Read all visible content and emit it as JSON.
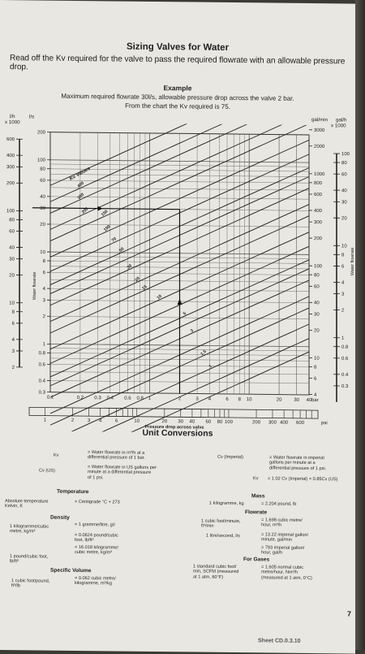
{
  "page": {
    "title": "Sizing Valves for Water",
    "intro": "Read off the Kv required for the valve to pass the required flowrate with an allowable pressure drop.",
    "example_heading": "Example",
    "example_line1": "Maximum required flowrate 30l/s, allowable pressure drop across the valve 2 bar.",
    "example_line2": "From the chart the Kv required is 75.",
    "page_number": "7",
    "footer_fragment": "Sheet CD.0.3.10"
  },
  "chart_data": {
    "type": "nomogram",
    "left_outer_label": [
      "l/h",
      "x 1000"
    ],
    "left_outer_ticks": [
      "600",
      "400",
      "300",
      "200",
      "100",
      "80",
      "60",
      "40",
      "30",
      "20",
      "10",
      "8",
      "6",
      "4",
      "3",
      "2"
    ],
    "left_inner_label": "l/s",
    "left_inner_ticks": [
      "200",
      "100",
      "80",
      "60",
      "40",
      "30",
      "20",
      "10",
      "8",
      "6",
      "4",
      "3",
      "2",
      "1",
      "0.8",
      "0.6",
      "0.4",
      "0.3"
    ],
    "left_axis_title": "Water flowrate",
    "right_inner_label": "gal/min",
    "right_inner_ticks": [
      "3000",
      "2000",
      "1000",
      "800",
      "600",
      "400",
      "300",
      "200",
      "100",
      "80",
      "60",
      "40",
      "30",
      "20",
      "10",
      "8",
      "6",
      "4"
    ],
    "right_outer_label": [
      "gal/h",
      "x 1000"
    ],
    "right_outer_ticks": [
      "100",
      "80",
      "60",
      "40",
      "30",
      "20",
      "10",
      "8",
      "6",
      "4",
      "3",
      "2",
      "1",
      "0.8",
      "0.6",
      "0.4",
      "0.3",
      "0.2"
    ],
    "right_axis_title": "Water flowrate",
    "x_bar_ticks": [
      "0.1",
      "0.2",
      "0.3",
      "0.4",
      "0.6",
      "0.8",
      "1",
      "2",
      "3",
      "4",
      "6",
      "8",
      "10",
      "20",
      "30",
      "40"
    ],
    "x_bar_unit": "bar",
    "x_psi_ticks": [
      "1",
      "2",
      "3",
      "4",
      "6",
      "10",
      "20",
      "30",
      "40",
      "60",
      "80",
      "100",
      "200",
      "300",
      "400",
      "600"
    ],
    "x_psi_unit": "psi",
    "x_axis_title": "Pressure drop across valve",
    "kv_title": "Kv Values",
    "kv_labels": [
      "400",
      "300",
      "200",
      "100",
      "150",
      "70",
      "50",
      "30",
      "20",
      "15",
      "10",
      "7",
      "5",
      "3",
      "1.5",
      "1"
    ],
    "example": {
      "flow_l_per_s": 30,
      "pressure_drop_bar": 2,
      "kv": 75
    }
  },
  "conversions": {
    "heading": "Unit Conversions",
    "kv_sym": "Kv",
    "kv_def": [
      "= Water flowrate in m³/h at a",
      "differential pressure of 1 bar."
    ],
    "cvus_sym": "Cv (US)",
    "cvus_def": [
      "= Water flowrate in US gallons per",
      "minute at a differential pressure",
      "of 1 psi."
    ],
    "cvimp_sym": "Cv (Imperial)",
    "cvimp_def": [
      "= Water flowrate in imperial",
      "gallons per minute at a",
      "differential pressure of 1 psi."
    ],
    "kv_rel_sym": "Kv",
    "kv_rel": "= 1.02 Cv (Imperial) = 0.85Cv (US)",
    "temperature_head": "Temperature",
    "abs_temp": [
      "Absolute temperature",
      "Kelvin, K"
    ],
    "abs_temp_val": "= Centigrade °C + 273",
    "density_head": "Density",
    "density_left": [
      "1 kilogramme/cubic",
      "metre, kg/m³"
    ],
    "density_r1": "= 1 gramme/litre, g/l",
    "density_r2": [
      "= 0.0624 pound/cubic",
      "foot, lb/ft³"
    ],
    "density_left2": [
      "1 pound/cubic foot,",
      "lb/ft³"
    ],
    "density_r3": [
      "= 16.018 kilogramme/",
      "cubic metre, kg/m³"
    ],
    "sv_head": "Specific Volume",
    "sv_left": [
      "1 cubic foot/pound,",
      "ft³/lb"
    ],
    "sv_val": [
      "= 0.062 cubic metre/",
      "kilogramme, m³/kg"
    ],
    "mass_head": "Mass",
    "mass_left": "1 kilogramme, kg",
    "mass_val": "= 2.204 pound, lb",
    "flow_head": "Flowrate",
    "flow_left1": [
      "1 cubic foot/minute,",
      "ft³/min"
    ],
    "flow_val1": [
      "= 1.698 cubic metre/",
      "hour, m³/h"
    ],
    "flow_left2": "1 litre/second, l/s",
    "flow_val2": [
      "= 13.22 imperial gallon/",
      "minute, gal/min"
    ],
    "flow_val3": [
      "= 793 imperial gallon/",
      "hour, gal/h"
    ],
    "gas_head": "For Gases",
    "gas_left": [
      "1 standard cubic foot/",
      "min, SCFM (measured",
      "at 1 atm, 60°F)"
    ],
    "gas_val": [
      "= 1.605 normal cubic",
      "metre/hour, Nm³/h",
      "(measured at 1 atm, 0°C)"
    ]
  }
}
